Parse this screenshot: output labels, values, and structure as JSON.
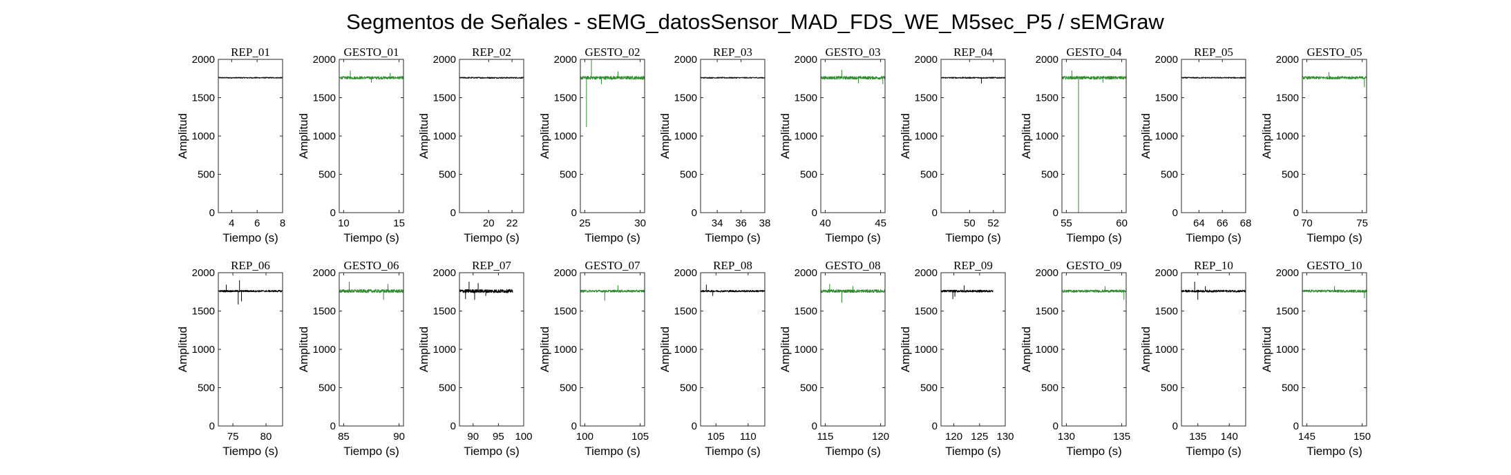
{
  "figure": {
    "title": "Segmentos de Señales - sEMG_datosSensor_MAD_FDS_WE_M5sec_P5 / sEMGraw"
  },
  "colors": {
    "rep": "#000000",
    "gesto": "#2e8b2e",
    "axes": "#262626"
  },
  "chart_data": [
    {
      "type": "line",
      "title": "REP_01",
      "xlabel": "Tiempo (s)",
      "ylabel": "Amplitud",
      "xlim": [
        2.95,
        8.0
      ],
      "ylim": [
        0,
        2000
      ],
      "xticks": [
        4,
        6,
        8
      ],
      "yticks": [
        0,
        500,
        1000,
        1500,
        2000
      ],
      "series": [
        {
          "color": "#000000",
          "baseline": 1760,
          "noise": 7,
          "spikes": []
        }
      ]
    },
    {
      "type": "line",
      "title": "GESTO_01",
      "xlabel": "Tiempo (s)",
      "ylabel": "Amplitud",
      "xlim": [
        9.6,
        15.4
      ],
      "ylim": [
        0,
        2000
      ],
      "xticks": [
        10,
        15
      ],
      "yticks": [
        0,
        500,
        1000,
        1500,
        2000
      ],
      "series": [
        {
          "color": "#2e8b2e",
          "baseline": 1760,
          "noise": 18,
          "spikes": [
            [
              10.6,
              1850
            ],
            [
              12.5,
              1700
            ],
            [
              14.2,
              1820
            ]
          ]
        }
      ]
    },
    {
      "type": "line",
      "title": "REP_02",
      "xlabel": "Tiempo (s)",
      "ylabel": "Amplitud",
      "xlim": [
        17.5,
        23.0
      ],
      "ylim": [
        0,
        2000
      ],
      "xticks": [
        20,
        22
      ],
      "yticks": [
        0,
        500,
        1000,
        1500,
        2000
      ],
      "series": [
        {
          "color": "#000000",
          "baseline": 1760,
          "noise": 8,
          "spikes": []
        }
      ]
    },
    {
      "type": "line",
      "title": "GESTO_02",
      "xlabel": "Tiempo (s)",
      "ylabel": "Amplitud",
      "xlim": [
        24.6,
        30.4
      ],
      "ylim": [
        0,
        2000
      ],
      "xticks": [
        25,
        30
      ],
      "yticks": [
        0,
        500,
        1000,
        1500,
        2000
      ],
      "series": [
        {
          "color": "#2e8b2e",
          "baseline": 1760,
          "noise": 22,
          "spikes": [
            [
              25.15,
              1120
            ],
            [
              25.6,
              2000
            ],
            [
              26.5,
              1680
            ],
            [
              28.0,
              1840
            ]
          ]
        }
      ]
    },
    {
      "type": "line",
      "title": "REP_03",
      "xlabel": "Tiempo (s)",
      "ylabel": "Amplitud",
      "xlim": [
        32.6,
        38.0
      ],
      "ylim": [
        0,
        2000
      ],
      "xticks": [
        34,
        36,
        38
      ],
      "yticks": [
        0,
        500,
        1000,
        1500,
        2000
      ],
      "series": [
        {
          "color": "#000000",
          "baseline": 1760,
          "noise": 7,
          "spikes": []
        }
      ]
    },
    {
      "type": "line",
      "title": "GESTO_03",
      "xlabel": "Tiempo (s)",
      "ylabel": "Amplitud",
      "xlim": [
        39.6,
        45.4
      ],
      "ylim": [
        0,
        2000
      ],
      "xticks": [
        40,
        45
      ],
      "yticks": [
        0,
        500,
        1000,
        1500,
        2000
      ],
      "series": [
        {
          "color": "#2e8b2e",
          "baseline": 1760,
          "noise": 20,
          "spikes": [
            [
              41.5,
              1860
            ],
            [
              43.0,
              1690
            ],
            [
              45.2,
              1680
            ]
          ]
        }
      ]
    },
    {
      "type": "line",
      "title": "REP_04",
      "xlabel": "Tiempo (s)",
      "ylabel": "Amplitud",
      "xlim": [
        47.6,
        53.0
      ],
      "ylim": [
        0,
        2000
      ],
      "xticks": [
        50,
        52
      ],
      "yticks": [
        0,
        500,
        1000,
        1500,
        2000
      ],
      "series": [
        {
          "color": "#000000",
          "baseline": 1760,
          "noise": 8,
          "spikes": [
            [
              51.0,
              1690
            ]
          ]
        }
      ]
    },
    {
      "type": "line",
      "title": "GESTO_04",
      "xlabel": "Tiempo (s)",
      "ylabel": "Amplitud",
      "xlim": [
        54.6,
        60.4
      ],
      "ylim": [
        0,
        2000
      ],
      "xticks": [
        55,
        60
      ],
      "yticks": [
        0,
        500,
        1000,
        1500,
        2000
      ],
      "series": [
        {
          "color": "#2e8b2e",
          "baseline": 1760,
          "noise": 20,
          "spikes": [
            [
              56.1,
              0
            ],
            [
              55.5,
              1850
            ],
            [
              58.3,
              1700
            ]
          ]
        }
      ]
    },
    {
      "type": "line",
      "title": "REP_05",
      "xlabel": "Tiempo (s)",
      "ylabel": "Amplitud",
      "xlim": [
        62.5,
        68.0
      ],
      "ylim": [
        0,
        2000
      ],
      "xticks": [
        64,
        66,
        68
      ],
      "yticks": [
        0,
        500,
        1000,
        1500,
        2000
      ],
      "series": [
        {
          "color": "#000000",
          "baseline": 1760,
          "noise": 7,
          "spikes": []
        }
      ]
    },
    {
      "type": "line",
      "title": "GESTO_05",
      "xlabel": "Tiempo (s)",
      "ylabel": "Amplitud",
      "xlim": [
        69.6,
        75.4
      ],
      "ylim": [
        0,
        2000
      ],
      "xticks": [
        70,
        75
      ],
      "yticks": [
        0,
        500,
        1000,
        1500,
        2000
      ],
      "series": [
        {
          "color": "#2e8b2e",
          "baseline": 1760,
          "noise": 18,
          "spikes": [
            [
              75.2,
              1640
            ],
            [
              72.0,
              1830
            ]
          ]
        }
      ]
    },
    {
      "type": "line",
      "title": "REP_06",
      "xlabel": "Tiempo (s)",
      "ylabel": "Amplitud",
      "xlim": [
        72.8,
        82.5
      ],
      "ylim": [
        0,
        2000
      ],
      "xticks": [
        75,
        80
      ],
      "yticks": [
        0,
        500,
        1000,
        1500,
        2000
      ],
      "series": [
        {
          "color": "#000000",
          "baseline": 1760,
          "noise": 12,
          "spikes": [
            [
              75.8,
              1590
            ],
            [
              76.0,
              1900
            ],
            [
              76.3,
              1630
            ],
            [
              74.0,
              1840
            ]
          ]
        }
      ]
    },
    {
      "type": "line",
      "title": "GESTO_06",
      "xlabel": "Tiempo (s)",
      "ylabel": "Amplitud",
      "xlim": [
        84.6,
        90.4
      ],
      "ylim": [
        0,
        2000
      ],
      "xticks": [
        85,
        90
      ],
      "yticks": [
        0,
        500,
        1000,
        1500,
        2000
      ],
      "series": [
        {
          "color": "#2e8b2e",
          "baseline": 1760,
          "noise": 22,
          "spikes": [
            [
              85.5,
              1880
            ],
            [
              88.6,
              1650
            ],
            [
              89.0,
              1850
            ]
          ]
        }
      ]
    },
    {
      "type": "line",
      "title": "REP_07",
      "xlabel": "Tiempo (s)",
      "ylabel": "Amplitud",
      "xlim": [
        87.3,
        100.0
      ],
      "ylim": [
        0,
        2000
      ],
      "xticks": [
        90,
        95,
        100
      ],
      "yticks": [
        0,
        500,
        1000,
        1500,
        2000
      ],
      "xend": 97.8,
      "series": [
        {
          "color": "#000000",
          "baseline": 1760,
          "noise": 22,
          "spikes": [
            [
              88.5,
              1660
            ],
            [
              89.2,
              1880
            ],
            [
              90.3,
              1650
            ],
            [
              91.0,
              1860
            ],
            [
              92.5,
              1700
            ]
          ]
        }
      ]
    },
    {
      "type": "line",
      "title": "GESTO_07",
      "xlabel": "Tiempo (s)",
      "ylabel": "Amplitud",
      "xlim": [
        99.6,
        105.4
      ],
      "ylim": [
        0,
        2000
      ],
      "xticks": [
        100,
        105
      ],
      "yticks": [
        0,
        500,
        1000,
        1500,
        2000
      ],
      "series": [
        {
          "color": "#2e8b2e",
          "baseline": 1760,
          "noise": 15,
          "spikes": [
            [
              101.8,
              1640
            ],
            [
              103.0,
              1830
            ]
          ]
        }
      ]
    },
    {
      "type": "line",
      "title": "REP_08",
      "xlabel": "Tiempo (s)",
      "ylabel": "Amplitud",
      "xlim": [
        102.6,
        112.6
      ],
      "ylim": [
        0,
        2000
      ],
      "xticks": [
        105,
        110
      ],
      "yticks": [
        0,
        500,
        1000,
        1500,
        2000
      ],
      "series": [
        {
          "color": "#000000",
          "baseline": 1760,
          "noise": 12,
          "spikes": [
            [
              103.5,
              1840
            ],
            [
              104.5,
              1700
            ]
          ]
        }
      ]
    },
    {
      "type": "line",
      "title": "GESTO_08",
      "xlabel": "Tiempo (s)",
      "ylabel": "Amplitud",
      "xlim": [
        114.6,
        120.4
      ],
      "ylim": [
        0,
        2000
      ],
      "xticks": [
        115,
        120
      ],
      "yticks": [
        0,
        500,
        1000,
        1500,
        2000
      ],
      "series": [
        {
          "color": "#2e8b2e",
          "baseline": 1760,
          "noise": 20,
          "spikes": [
            [
              116.5,
              1610
            ],
            [
              115.4,
              1850
            ],
            [
              117.5,
              1820
            ]
          ]
        }
      ]
    },
    {
      "type": "line",
      "title": "REP_09",
      "xlabel": "Tiempo (s)",
      "ylabel": "Amplitud",
      "xlim": [
        117.5,
        130.0
      ],
      "ylim": [
        0,
        2000
      ],
      "xticks": [
        120,
        125,
        130
      ],
      "yticks": [
        0,
        500,
        1000,
        1500,
        2000
      ],
      "xend": 127.6,
      "series": [
        {
          "color": "#000000",
          "baseline": 1760,
          "noise": 14,
          "spikes": [
            [
              119.8,
              1660
            ],
            [
              120.2,
              1690
            ],
            [
              122.0,
              1830
            ]
          ]
        }
      ]
    },
    {
      "type": "line",
      "title": "GESTO_09",
      "xlabel": "Tiempo (s)",
      "ylabel": "Amplitud",
      "xlim": [
        129.6,
        135.4
      ],
      "ylim": [
        0,
        2000
      ],
      "xticks": [
        130,
        135
      ],
      "yticks": [
        0,
        500,
        1000,
        1500,
        2000
      ],
      "series": [
        {
          "color": "#2e8b2e",
          "baseline": 1760,
          "noise": 16,
          "spikes": [
            [
              135.2,
              1650
            ],
            [
              133.5,
              1820
            ]
          ]
        }
      ]
    },
    {
      "type": "line",
      "title": "REP_10",
      "xlabel": "Tiempo (s)",
      "ylabel": "Amplitud",
      "xlim": [
        132.4,
        142.6
      ],
      "ylim": [
        0,
        2000
      ],
      "xticks": [
        135,
        140
      ],
      "yticks": [
        0,
        500,
        1000,
        1500,
        2000
      ],
      "series": [
        {
          "color": "#000000",
          "baseline": 1760,
          "noise": 14,
          "spikes": [
            [
              134.5,
              1880
            ],
            [
              135.0,
              1650
            ],
            [
              136.2,
              1820
            ]
          ]
        }
      ]
    },
    {
      "type": "line",
      "title": "GESTO_10",
      "xlabel": "Tiempo (s)",
      "ylabel": "Amplitud",
      "xlim": [
        144.6,
        150.4
      ],
      "ylim": [
        0,
        2000
      ],
      "xticks": [
        145,
        150
      ],
      "yticks": [
        0,
        500,
        1000,
        1500,
        2000
      ],
      "series": [
        {
          "color": "#2e8b2e",
          "baseline": 1760,
          "noise": 16,
          "spikes": [
            [
              150.2,
              1670
            ],
            [
              147.5,
              1820
            ]
          ]
        }
      ]
    }
  ]
}
